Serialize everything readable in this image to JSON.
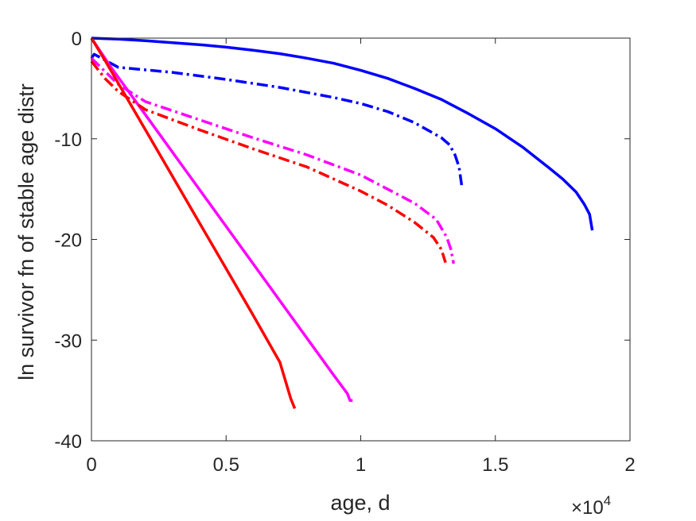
{
  "chart_data": {
    "type": "line",
    "title": "",
    "xlabel": "age, d",
    "ylabel": "ln survivor fn of stable age distr",
    "x_exponent_label": {
      "base": "×10",
      "exponent": "4"
    },
    "x_scale_factor": 10000,
    "xlim": [
      0,
      20000
    ],
    "ylim": [
      -40,
      0
    ],
    "x_ticks": [
      0,
      5000,
      10000,
      15000,
      20000
    ],
    "x_tick_labels": [
      "0",
      "0.5",
      "1",
      "1.5",
      "2"
    ],
    "y_ticks": [
      0,
      -10,
      -20,
      -30,
      -40
    ],
    "y_tick_labels": [
      "0",
      "-10",
      "-20",
      "-30",
      "-40"
    ],
    "grid": false,
    "legend": "none",
    "series": [
      {
        "color": "#0000ff",
        "style": "solid",
        "x": [
          0,
          1000,
          2000,
          3000,
          4000,
          5000,
          6000,
          7000,
          8000,
          9000,
          10000,
          11000,
          12000,
          13000,
          14000,
          15000,
          16000,
          17000,
          17500,
          18000,
          18300,
          18500,
          18600
        ],
        "y": [
          0,
          -0.1,
          -0.25,
          -0.45,
          -0.65,
          -0.9,
          -1.2,
          -1.55,
          -2.0,
          -2.5,
          -3.2,
          -4.0,
          -5.0,
          -6.1,
          -7.5,
          -9.0,
          -10.8,
          -12.9,
          -14.0,
          -15.3,
          -16.5,
          -17.5,
          -19.1
        ]
      },
      {
        "color": "#0000ff",
        "style": "dashdot",
        "x": [
          0,
          100,
          1000,
          3000,
          5000,
          7000,
          9000,
          10000,
          11000,
          12000,
          13000,
          13300,
          13500,
          13650,
          13750
        ],
        "y": [
          -2.0,
          -1.6,
          -2.9,
          -3.4,
          -4.1,
          -4.9,
          -5.9,
          -6.5,
          -7.3,
          -8.4,
          -9.9,
          -10.6,
          -11.6,
          -12.8,
          -14.6
        ]
      },
      {
        "color": "#ff00ff",
        "style": "solid",
        "x": [
          0,
          700,
          2000,
          4000,
          6000,
          8000,
          9000,
          9500,
          9600,
          9700
        ],
        "y": [
          0,
          -2.8,
          -7.6,
          -15.0,
          -22.4,
          -29.8,
          -33.5,
          -35.3,
          -36.0,
          -36.0
        ]
      },
      {
        "color": "#ff00ff",
        "style": "dashdot",
        "x": [
          0,
          1000,
          2000,
          4000,
          6000,
          8000,
          10000,
          12000,
          12800,
          13200,
          13350,
          13450
        ],
        "y": [
          -2.0,
          -4.6,
          -6.3,
          -8.1,
          -9.9,
          -11.6,
          -13.6,
          -16.4,
          -18.0,
          -19.8,
          -21.0,
          -22.4
        ]
      },
      {
        "color": "#ff0000",
        "style": "solid",
        "x": [
          0,
          500,
          1000,
          2000,
          3000,
          4000,
          5000,
          6000,
          7000,
          7400,
          7550
        ],
        "y": [
          0,
          -2.2,
          -4.5,
          -9.1,
          -13.7,
          -18.3,
          -22.9,
          -27.5,
          -32.2,
          -35.8,
          -36.8
        ]
      },
      {
        "color": "#ff0000",
        "style": "dashdot",
        "x": [
          0,
          500,
          1000,
          2000,
          4000,
          6000,
          8000,
          10000,
          11000,
          12000,
          12700,
          13000,
          13150
        ],
        "y": [
          -2.3,
          -4.0,
          -5.3,
          -7.1,
          -9.1,
          -11.0,
          -12.8,
          -15.2,
          -16.6,
          -18.3,
          -19.8,
          -21.0,
          -22.3
        ]
      }
    ]
  }
}
